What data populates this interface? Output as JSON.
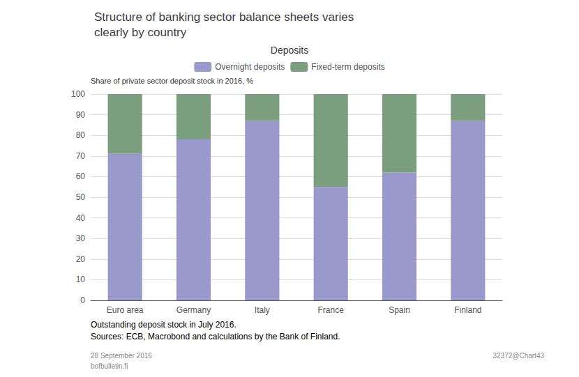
{
  "chart_data": {
    "type": "bar",
    "title": "Structure of banking sector balance sheets varies\nclearly by country",
    "subtitle": "Deposits",
    "ylabel": "Share of private sector deposit stock in 2016, %",
    "categories": [
      "Euro area",
      "Germany",
      "Italy",
      "France",
      "Spain",
      "Finland"
    ],
    "series": [
      {
        "name": "Overnight deposits",
        "color": "#9999cc",
        "values": [
          71,
          78,
          87,
          55,
          62,
          87
        ]
      },
      {
        "name": "Fixed-term deposits",
        "color": "#7a9e7e",
        "values": [
          29,
          22,
          13,
          45,
          38,
          13
        ]
      }
    ],
    "stacked": true,
    "ylim": [
      0,
      100
    ],
    "yticks": [
      0,
      10,
      20,
      30,
      40,
      50,
      60,
      70,
      80,
      90,
      100
    ],
    "grid": true,
    "legend": "top",
    "annotations": [
      "Outstanding deposit stock in July 2016.",
      "Sources: ECB, Macrobond and calculations by the Bank of Finland.",
      "28 September 2016",
      "bofbulletin.fi",
      "32372@Chart43"
    ]
  }
}
